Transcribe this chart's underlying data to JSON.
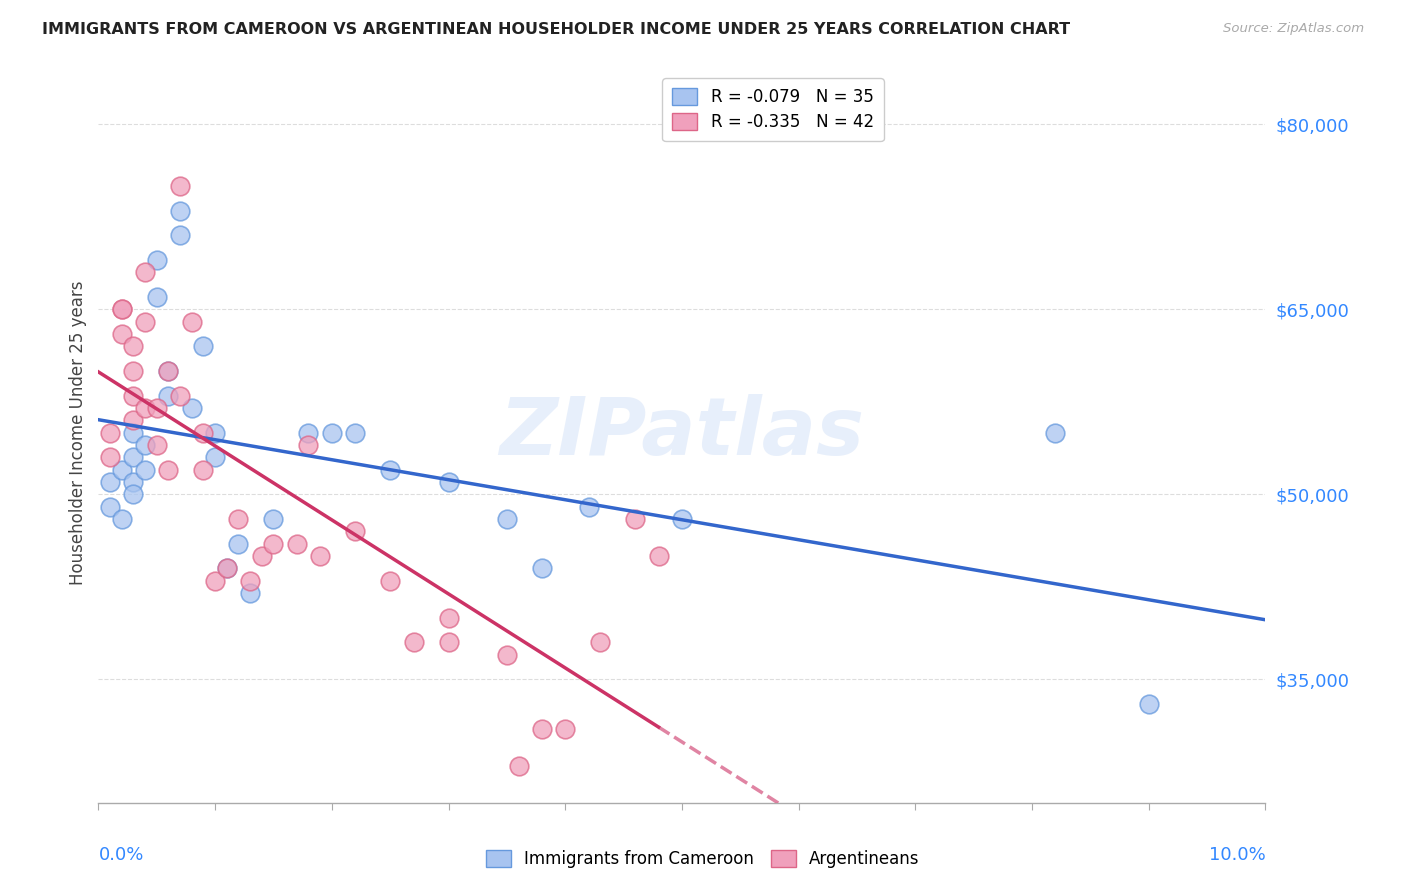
{
  "title": "IMMIGRANTS FROM CAMEROON VS ARGENTINEAN HOUSEHOLDER INCOME UNDER 25 YEARS CORRELATION CHART",
  "source": "Source: ZipAtlas.com",
  "ylabel": "Householder Income Under 25 years",
  "xmin": 0.0,
  "xmax": 0.1,
  "ymin": 25000,
  "ymax": 85000,
  "yticks": [
    35000,
    50000,
    65000,
    80000
  ],
  "ytick_labels": [
    "$35,000",
    "$50,000",
    "$65,000",
    "$80,000"
  ],
  "watermark": "ZIPatlas",
  "blue_color": "#a8c4f0",
  "pink_color": "#f0a0bc",
  "blue_edge_color": "#6699dd",
  "pink_edge_color": "#dd6688",
  "blue_line_color": "#3366cc",
  "pink_line_color": "#cc3366",
  "cameroon_x": [
    0.001,
    0.001,
    0.002,
    0.002,
    0.003,
    0.003,
    0.003,
    0.003,
    0.004,
    0.004,
    0.005,
    0.005,
    0.006,
    0.006,
    0.007,
    0.007,
    0.008,
    0.009,
    0.01,
    0.01,
    0.011,
    0.012,
    0.013,
    0.015,
    0.018,
    0.02,
    0.022,
    0.025,
    0.03,
    0.035,
    0.038,
    0.042,
    0.05,
    0.082,
    0.09
  ],
  "cameroon_y": [
    51000,
    49000,
    52000,
    48000,
    53000,
    51000,
    50000,
    55000,
    54000,
    52000,
    69000,
    66000,
    60000,
    58000,
    71000,
    73000,
    57000,
    62000,
    55000,
    53000,
    44000,
    46000,
    42000,
    48000,
    55000,
    55000,
    55000,
    52000,
    51000,
    48000,
    44000,
    49000,
    48000,
    55000,
    33000
  ],
  "argentina_x": [
    0.001,
    0.001,
    0.002,
    0.002,
    0.002,
    0.003,
    0.003,
    0.003,
    0.003,
    0.004,
    0.004,
    0.004,
    0.005,
    0.005,
    0.006,
    0.006,
    0.007,
    0.007,
    0.008,
    0.009,
    0.009,
    0.01,
    0.011,
    0.012,
    0.013,
    0.014,
    0.015,
    0.017,
    0.018,
    0.019,
    0.022,
    0.025,
    0.027,
    0.03,
    0.03,
    0.035,
    0.038,
    0.04,
    0.043,
    0.046,
    0.048,
    0.036
  ],
  "argentina_y": [
    55000,
    53000,
    65000,
    65000,
    63000,
    62000,
    60000,
    58000,
    56000,
    68000,
    64000,
    57000,
    57000,
    54000,
    52000,
    60000,
    58000,
    75000,
    64000,
    55000,
    52000,
    43000,
    44000,
    48000,
    43000,
    45000,
    46000,
    46000,
    54000,
    45000,
    47000,
    43000,
    38000,
    40000,
    38000,
    37000,
    31000,
    31000,
    38000,
    48000,
    45000,
    28000
  ],
  "background_color": "#ffffff",
  "grid_color": "#dddddd",
  "legend1_r": "R = -0.079",
  "legend1_n": "N = 35",
  "legend2_r": "R = -0.335",
  "legend2_n": "N = 42"
}
